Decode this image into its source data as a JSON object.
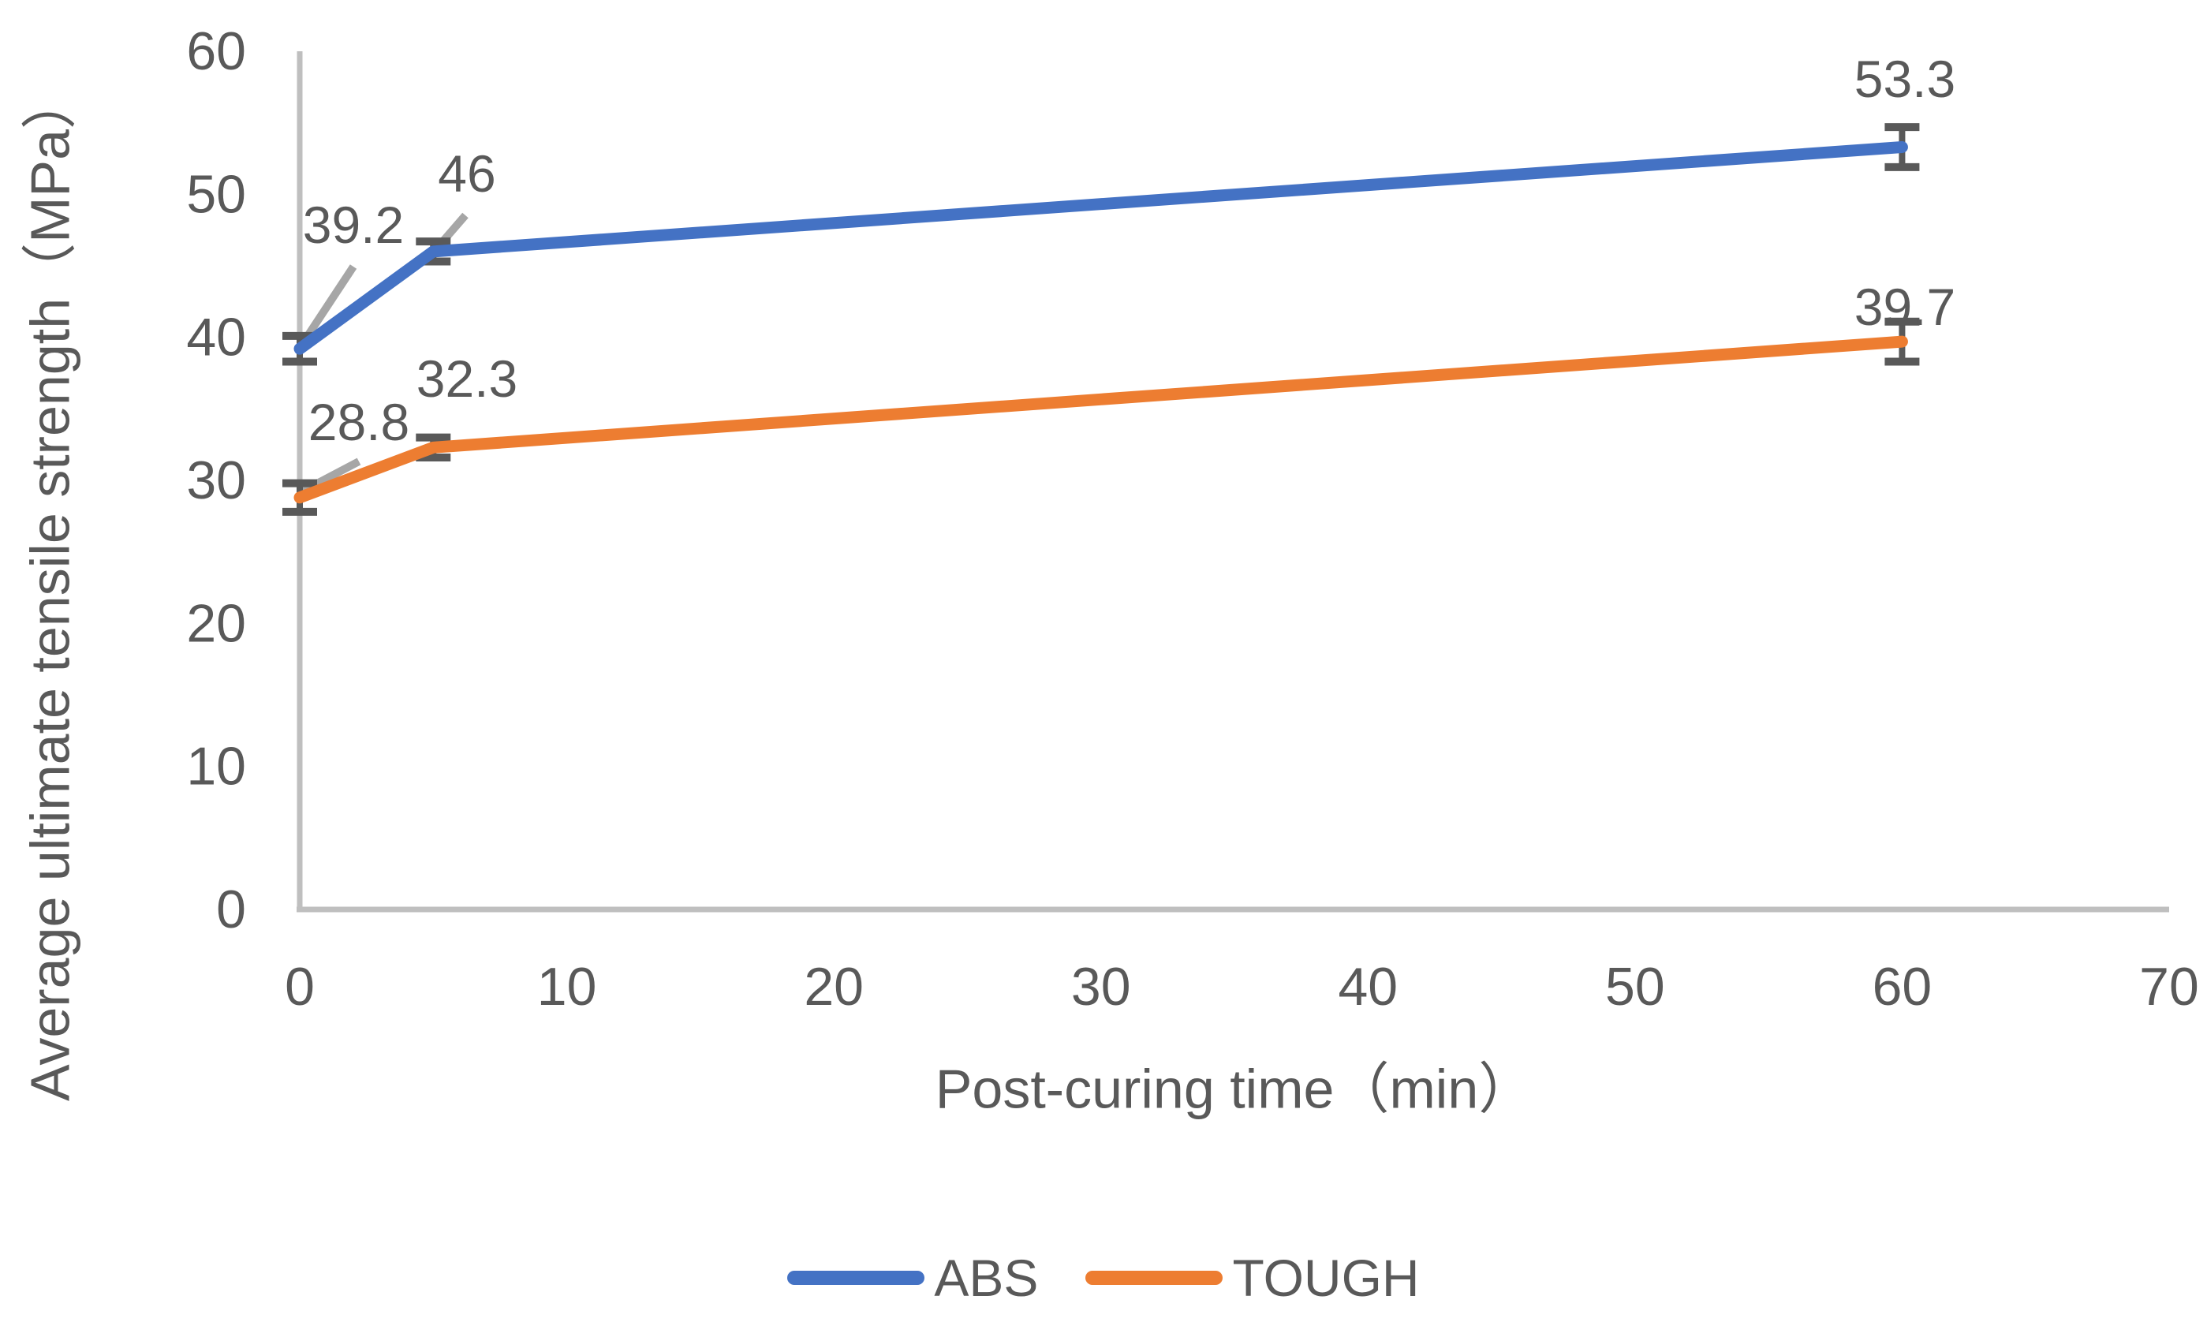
{
  "chart_data": {
    "type": "line",
    "title": "",
    "xlabel": "Post-curing time（min）",
    "ylabel": "Average ultimate tensile strength（MPa）",
    "x": [
      0,
      5,
      60
    ],
    "series": [
      {
        "name": "ABS",
        "color": "#4472C4",
        "values": [
          39.2,
          46,
          53.3
        ],
        "labels": [
          "39.2",
          "46",
          "53.3"
        ],
        "errors": [
          0.9,
          0.7,
          1.4
        ]
      },
      {
        "name": "TOUGH",
        "color": "#ED7D31",
        "values": [
          28.8,
          32.3,
          39.7
        ],
        "labels": [
          "28.8",
          "32.3",
          "39.7"
        ],
        "errors": [
          1.0,
          0.7,
          1.4
        ]
      }
    ],
    "xlim": [
      0,
      70
    ],
    "ylim": [
      0,
      60
    ],
    "x_ticks": [
      0,
      10,
      20,
      30,
      40,
      50,
      60,
      70
    ],
    "y_ticks": [
      0,
      10,
      20,
      30,
      40,
      50,
      60
    ],
    "grid": false,
    "legend_position": "bottom-center",
    "axis_color": "#BFBFBF",
    "text_color": "#595959",
    "error_bar_color": "#595959",
    "leader_color": "#A6A6A6",
    "label_placements": [
      [
        {
          "x": 448,
          "y": 285,
          "leader": [
            448,
            338,
            382,
            438
          ]
        },
        {
          "x": 592,
          "y": 220,
          "leader": [
            590,
            273,
            551,
            318
          ]
        },
        {
          "x": 2415,
          "y": 100,
          "leader": null
        }
      ],
      [
        {
          "x": 455,
          "y": 535,
          "leader": [
            455,
            585,
            383,
            623
          ]
        },
        {
          "x": 592,
          "y": 480,
          "leader": null
        },
        {
          "x": 2415,
          "y": 389,
          "leader": null
        }
      ]
    ]
  }
}
